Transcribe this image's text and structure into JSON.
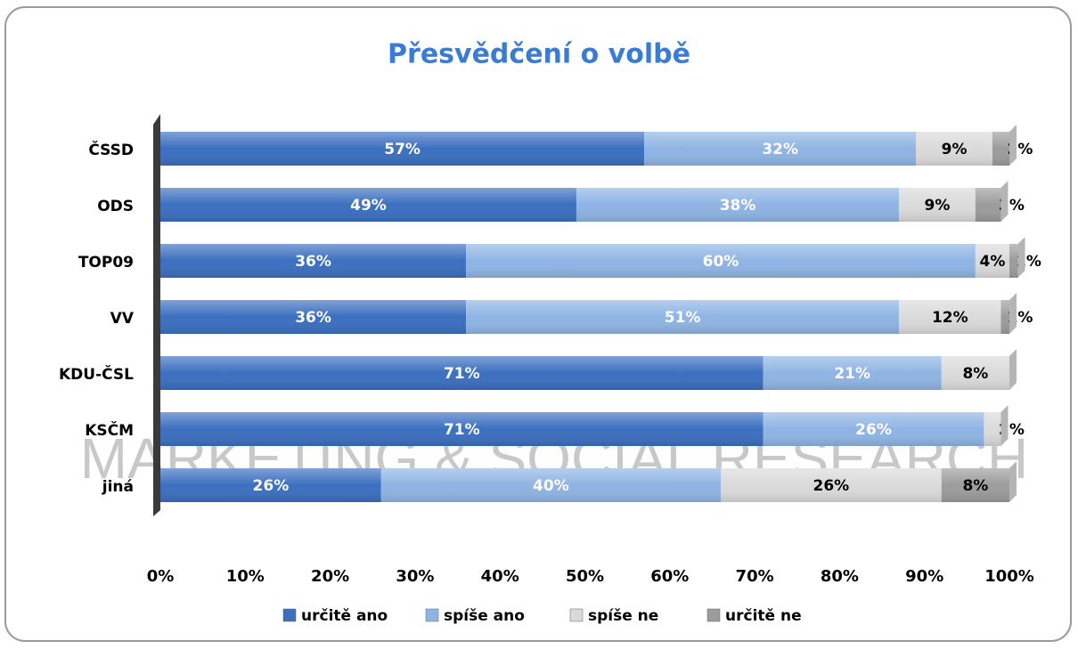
{
  "chart_data": {
    "type": "stacked_barh",
    "title": "Přesvědčení o volbě",
    "watermark": "MARKETING & SOCIAL RESEARCH",
    "categories": [
      "ČSSD",
      "ODS",
      "TOP09",
      "VV",
      "KDU-ČSL",
      "KSČM",
      "jiná"
    ],
    "series": [
      {
        "name": "určitě ano",
        "color": "#3b6fbf",
        "label_color": "#ffffff",
        "values": [
          57,
          49,
          36,
          36,
          71,
          71,
          26
        ],
        "value_labels": [
          "57%",
          "49%",
          "36%",
          "36%",
          "71%",
          "71%",
          "26%"
        ]
      },
      {
        "name": "spíše ano",
        "color": "#8fb4e3",
        "label_color": "#ffffff",
        "values": [
          32,
          38,
          60,
          51,
          21,
          26,
          40
        ],
        "value_labels": [
          "32%",
          "38%",
          "60%",
          "51%",
          "21%",
          "26%",
          "40%"
        ]
      },
      {
        "name": "spíše ne",
        "color": "#dadada",
        "label_color": "#000000",
        "values": [
          9,
          9,
          4,
          12,
          8,
          2,
          26
        ],
        "value_labels": [
          "9%",
          "9%",
          "4%",
          "12%",
          "8%",
          "2%",
          "26%"
        ]
      },
      {
        "name": "určitě ne",
        "color": "#9c9c9c",
        "label_color": "#000000",
        "values": [
          2,
          3,
          1,
          1,
          0,
          0,
          8
        ],
        "value_labels": [
          "2%",
          "3%",
          "1%",
          "1%",
          null,
          null,
          "8%"
        ]
      }
    ],
    "xlim": [
      0,
      100
    ],
    "xticks": [
      {
        "value": 0,
        "label": "0%"
      },
      {
        "value": 10,
        "label": "10%"
      },
      {
        "value": 20,
        "label": "20%"
      },
      {
        "value": 30,
        "label": "30%"
      },
      {
        "value": 40,
        "label": "40%"
      },
      {
        "value": 50,
        "label": "50%"
      },
      {
        "value": 60,
        "label": "60%"
      },
      {
        "value": 70,
        "label": "70%"
      },
      {
        "value": 80,
        "label": "80%"
      },
      {
        "value": 90,
        "label": "90%"
      },
      {
        "value": 100,
        "label": "100%"
      }
    ],
    "legend": "bottom"
  }
}
